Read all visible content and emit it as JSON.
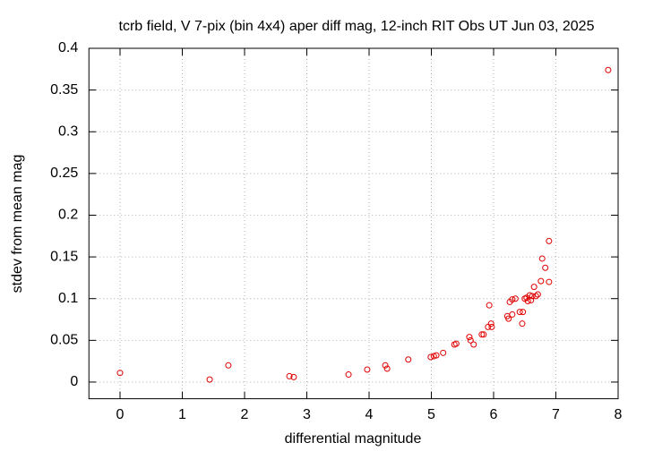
{
  "chart_data": {
    "type": "scatter",
    "title": "tcrb field, V 7-pix (bin 4x4) aper diff mag,  12-inch RIT Obs UT Jun 03, 2025",
    "xlabel": "differential magnitude",
    "ylabel": "stdev from mean mag",
    "xlim": [
      -0.5,
      8
    ],
    "ylim": [
      -0.02,
      0.4
    ],
    "xticks": [
      0,
      1,
      2,
      3,
      4,
      5,
      6,
      7,
      8
    ],
    "yticks": [
      0,
      0.05,
      0.1,
      0.15,
      0.2,
      0.25,
      0.3,
      0.35,
      0.4
    ],
    "grid": true,
    "color": "#e00000",
    "x": [
      0,
      1.44,
      1.74,
      2.72,
      2.79,
      3.67,
      3.97,
      4.26,
      4.29,
      4.63,
      4.99,
      5.04,
      5.08,
      5.19,
      5.37,
      5.4,
      5.61,
      5.63,
      5.68,
      5.81,
      5.84,
      5.93,
      5.91,
      5.96,
      5.97,
      6.22,
      6.24,
      6.26,
      6.3,
      6.3,
      6.35,
      6.42,
      6.46,
      6.47,
      6.5,
      6.53,
      6.55,
      6.58,
      6.6,
      6.62,
      6.65,
      6.68,
      6.71,
      6.76,
      6.78,
      6.83,
      6.89,
      6.89,
      7.84
    ],
    "values": [
      0.011,
      0.003,
      0.02,
      0.007,
      0.006,
      0.009,
      0.015,
      0.02,
      0.016,
      0.027,
      0.03,
      0.031,
      0.032,
      0.035,
      0.045,
      0.046,
      0.054,
      0.05,
      0.045,
      0.057,
      0.057,
      0.092,
      0.066,
      0.07,
      0.066,
      0.079,
      0.076,
      0.096,
      0.099,
      0.081,
      0.1,
      0.084,
      0.07,
      0.084,
      0.1,
      0.101,
      0.097,
      0.104,
      0.098,
      0.103,
      0.114,
      0.103,
      0.105,
      0.121,
      0.148,
      0.137,
      0.169,
      0.12,
      0.374
    ]
  }
}
